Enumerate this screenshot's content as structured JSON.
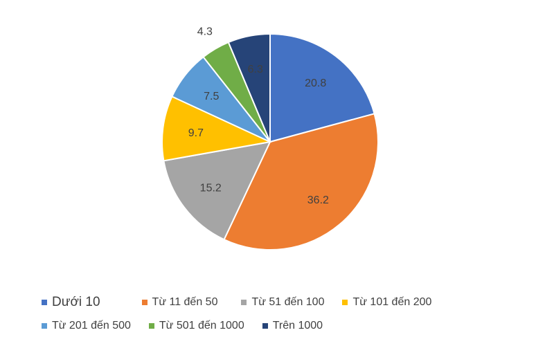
{
  "chart_data": {
    "type": "pie",
    "title": "",
    "legend_position": "bottom",
    "slices": [
      {
        "label": "Dưới 10",
        "value": 20.8,
        "display": "20.8",
        "color": "#4472C4"
      },
      {
        "label": "Từ 11 đến 50",
        "value": 36.2,
        "display": "36.2",
        "color": "#ED7D31"
      },
      {
        "label": "Từ 51 đến 100",
        "value": 15.2,
        "display": "15.2",
        "color": "#A5A5A5"
      },
      {
        "label": "Từ 101 đến 200",
        "value": 9.7,
        "display": "9.7",
        "color": "#FFC000"
      },
      {
        "label": "Từ 201 đến 500",
        "value": 7.5,
        "display": "7.5",
        "color": "#5B9BD5"
      },
      {
        "label": "Từ 501 đến 1000",
        "value": 4.3,
        "display": "4.3",
        "color": "#70AD47"
      },
      {
        "label": "Trên 1000",
        "value": 6.3,
        "display": "6.3",
        "color": "#264478"
      }
    ]
  }
}
